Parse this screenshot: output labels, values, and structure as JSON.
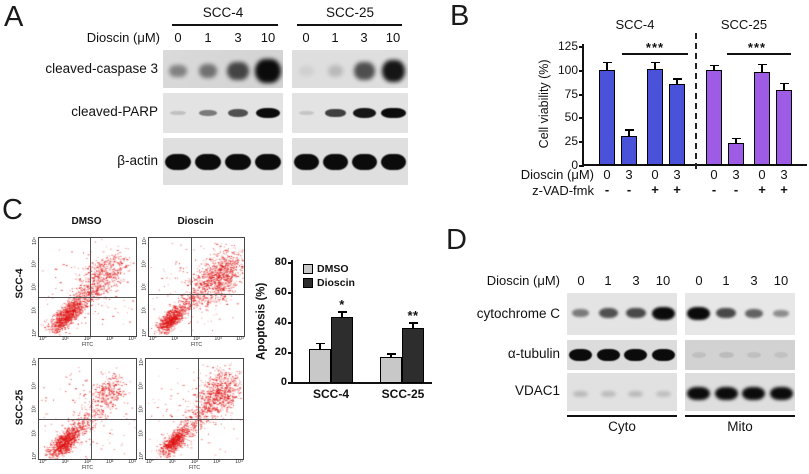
{
  "panels": {
    "a": {
      "label": "A",
      "group_headers": [
        "SCC-4",
        "SCC-25"
      ],
      "dose_label": "Dioscin (μM)",
      "doses": [
        "0",
        "1",
        "3",
        "10"
      ],
      "rows": [
        {
          "label": "cleaved-caspase 3",
          "band_h": 24,
          "blur": 2,
          "band_y": 0.55,
          "groups": [
            [
              0.22,
              0.32,
              0.6,
              1.0
            ],
            [
              0.05,
              0.13,
              0.55,
              0.9
            ]
          ]
        },
        {
          "label": "cleaved-PARP",
          "band_h": 10,
          "blur": 0.6,
          "band_y": 0.5,
          "groups": [
            [
              0.12,
              0.3,
              0.55,
              0.95
            ],
            [
              0.1,
              0.65,
              0.9,
              1.0
            ]
          ]
        },
        {
          "label": "β-actin",
          "band_h": 16,
          "blur": 0.4,
          "band_y": 0.5,
          "groups": [
            [
              1,
              1,
              1,
              1
            ],
            [
              1,
              1,
              1,
              1
            ]
          ]
        }
      ]
    },
    "b": {
      "label": "B"
    },
    "c": {
      "label": "C",
      "col_headers": [
        "DMSO",
        "Dioscin"
      ],
      "row_headers": [
        "SCC-4",
        "SCC-25"
      ]
    },
    "d": {
      "label": "D",
      "dose_label": "Dioscin (μM)",
      "doses": [
        "0",
        "1",
        "3",
        "10"
      ],
      "fraction_labels": [
        "Cyto",
        "Mito"
      ],
      "rows": [
        {
          "label": "cytochrome C",
          "band_h": 13,
          "blur": 1.2,
          "band_y": 0.48,
          "groups": [
            [
              0.3,
              0.55,
              0.6,
              1.0
            ],
            [
              1.0,
              0.6,
              0.45,
              0.2
            ]
          ]
        },
        {
          "label": "α-tubulin",
          "band_h": 12,
          "blur": 0.5,
          "band_y": 0.5,
          "groups": [
            [
              1,
              1,
              1,
              1
            ],
            [
              0.07,
              0.08,
              0.07,
              0.06
            ]
          ]
        },
        {
          "label": "VDAC1",
          "band_h": 13,
          "blur": 1.6,
          "band_y": 0.55,
          "groups": [
            [
              0.14,
              0.13,
              0.14,
              0.12
            ],
            [
              1,
              1,
              1,
              1
            ]
          ]
        }
      ]
    }
  },
  "chart_data": [
    {
      "id": "b",
      "type": "bar",
      "panel": "B",
      "group_headers": [
        "SCC-4",
        "SCC-25"
      ],
      "ylabel": "Cell viability (%)",
      "ylim": [
        0,
        125
      ],
      "yticks": [
        125,
        100,
        75,
        50,
        25,
        0
      ],
      "values": [
        100,
        31,
        101,
        85,
        100,
        23,
        98,
        79
      ],
      "errors": [
        7,
        5,
        6,
        5,
        4,
        4,
        7,
        6
      ],
      "bar_colors": [
        "#4a52da",
        "#4a52da",
        "#4a52da",
        "#4a52da",
        "#9e5ce6",
        "#9e5ce6",
        "#9e5ce6",
        "#9e5ce6"
      ],
      "sig": [
        {
          "label": "***",
          "group": "SCC-4"
        },
        {
          "label": "***",
          "group": "SCC-25"
        }
      ],
      "x_rows": [
        {
          "label": "Dioscin (μM)",
          "values": [
            "0",
            "3",
            "0",
            "3",
            "0",
            "3",
            "0",
            "3"
          ]
        },
        {
          "label": "z-VAD-fmk",
          "values": [
            "-",
            "-",
            "+",
            "+",
            "-",
            "-",
            "+",
            "+"
          ]
        }
      ]
    },
    {
      "id": "c",
      "type": "bar",
      "panel": "C",
      "ylabel": "Apoptosis (%)",
      "ylim": [
        0,
        80
      ],
      "yticks": [
        80,
        60,
        40,
        20,
        0
      ],
      "categories": [
        "SCC-4",
        "SCC-25"
      ],
      "series": [
        {
          "name": "DMSO",
          "color": "#c8c8c8",
          "values": [
            23,
            17.5
          ],
          "errors": [
            3,
            1.5
          ],
          "sig": [
            "",
            ""
          ]
        },
        {
          "name": "Dioscin",
          "color": "#2d2d2d",
          "values": [
            44,
            37
          ],
          "errors": [
            3,
            2.5
          ],
          "sig": [
            "*",
            "**"
          ]
        }
      ],
      "legend_position": "top-left"
    },
    {
      "id": "flow",
      "type": "scatter",
      "panel": "C",
      "description": "Flow cytometry apoptosis dot plots",
      "xlabel": "FITC",
      "decades": [
        "10⁰",
        "10¹",
        "10²",
        "10³",
        "10⁴"
      ],
      "dot_color": "#dd1111",
      "plots": [
        {
          "cell_line": "SCC-4",
          "condition": "DMSO",
          "gate": {
            "x": 0.53,
            "y": 0.6
          },
          "clusters": [
            {
              "x": 0.28,
              "y": 0.79,
              "maj": 0.11,
              "min": 0.045,
              "n": 850,
              "diag": true
            },
            {
              "x": 0.47,
              "y": 0.6,
              "maj": 0.13,
              "min": 0.05,
              "n": 220,
              "diag": true
            },
            {
              "x": 0.66,
              "y": 0.38,
              "maj": 0.15,
              "min": 0.09,
              "n": 500,
              "diag": true
            },
            {
              "x": 0.5,
              "y": 0.55,
              "maj": 0.3,
              "min": 0.25,
              "n": 130,
              "diag": false
            }
          ]
        },
        {
          "cell_line": "SCC-4",
          "condition": "Dioscin",
          "gate": {
            "x": 0.44,
            "y": 0.57
          },
          "clusters": [
            {
              "x": 0.22,
              "y": 0.83,
              "maj": 0.09,
              "min": 0.04,
              "n": 700,
              "diag": true
            },
            {
              "x": 0.44,
              "y": 0.64,
              "maj": 0.12,
              "min": 0.05,
              "n": 200,
              "diag": true
            },
            {
              "x": 0.72,
              "y": 0.4,
              "maj": 0.16,
              "min": 0.1,
              "n": 950,
              "diag": true
            },
            {
              "x": 0.5,
              "y": 0.55,
              "maj": 0.3,
              "min": 0.25,
              "n": 140,
              "diag": false
            }
          ]
        },
        {
          "cell_line": "SCC-25",
          "condition": "DMSO",
          "gate": {
            "x": 0.54,
            "y": 0.6
          },
          "clusters": [
            {
              "x": 0.26,
              "y": 0.83,
              "maj": 0.1,
              "min": 0.045,
              "n": 850,
              "diag": true
            },
            {
              "x": 0.47,
              "y": 0.63,
              "maj": 0.13,
              "min": 0.05,
              "n": 230,
              "diag": true
            },
            {
              "x": 0.71,
              "y": 0.32,
              "maj": 0.1,
              "min": 0.07,
              "n": 280,
              "diag": true
            },
            {
              "x": 0.5,
              "y": 0.55,
              "maj": 0.3,
              "min": 0.25,
              "n": 130,
              "diag": false
            }
          ]
        },
        {
          "cell_line": "SCC-25",
          "condition": "Dioscin",
          "gate": {
            "x": 0.54,
            "y": 0.6
          },
          "clusters": [
            {
              "x": 0.28,
              "y": 0.83,
              "maj": 0.09,
              "min": 0.04,
              "n": 650,
              "diag": true
            },
            {
              "x": 0.5,
              "y": 0.62,
              "maj": 0.13,
              "min": 0.05,
              "n": 220,
              "diag": true
            },
            {
              "x": 0.74,
              "y": 0.35,
              "maj": 0.13,
              "min": 0.09,
              "n": 750,
              "diag": true
            },
            {
              "x": 0.5,
              "y": 0.55,
              "maj": 0.3,
              "min": 0.25,
              "n": 130,
              "diag": false
            }
          ]
        }
      ]
    }
  ]
}
